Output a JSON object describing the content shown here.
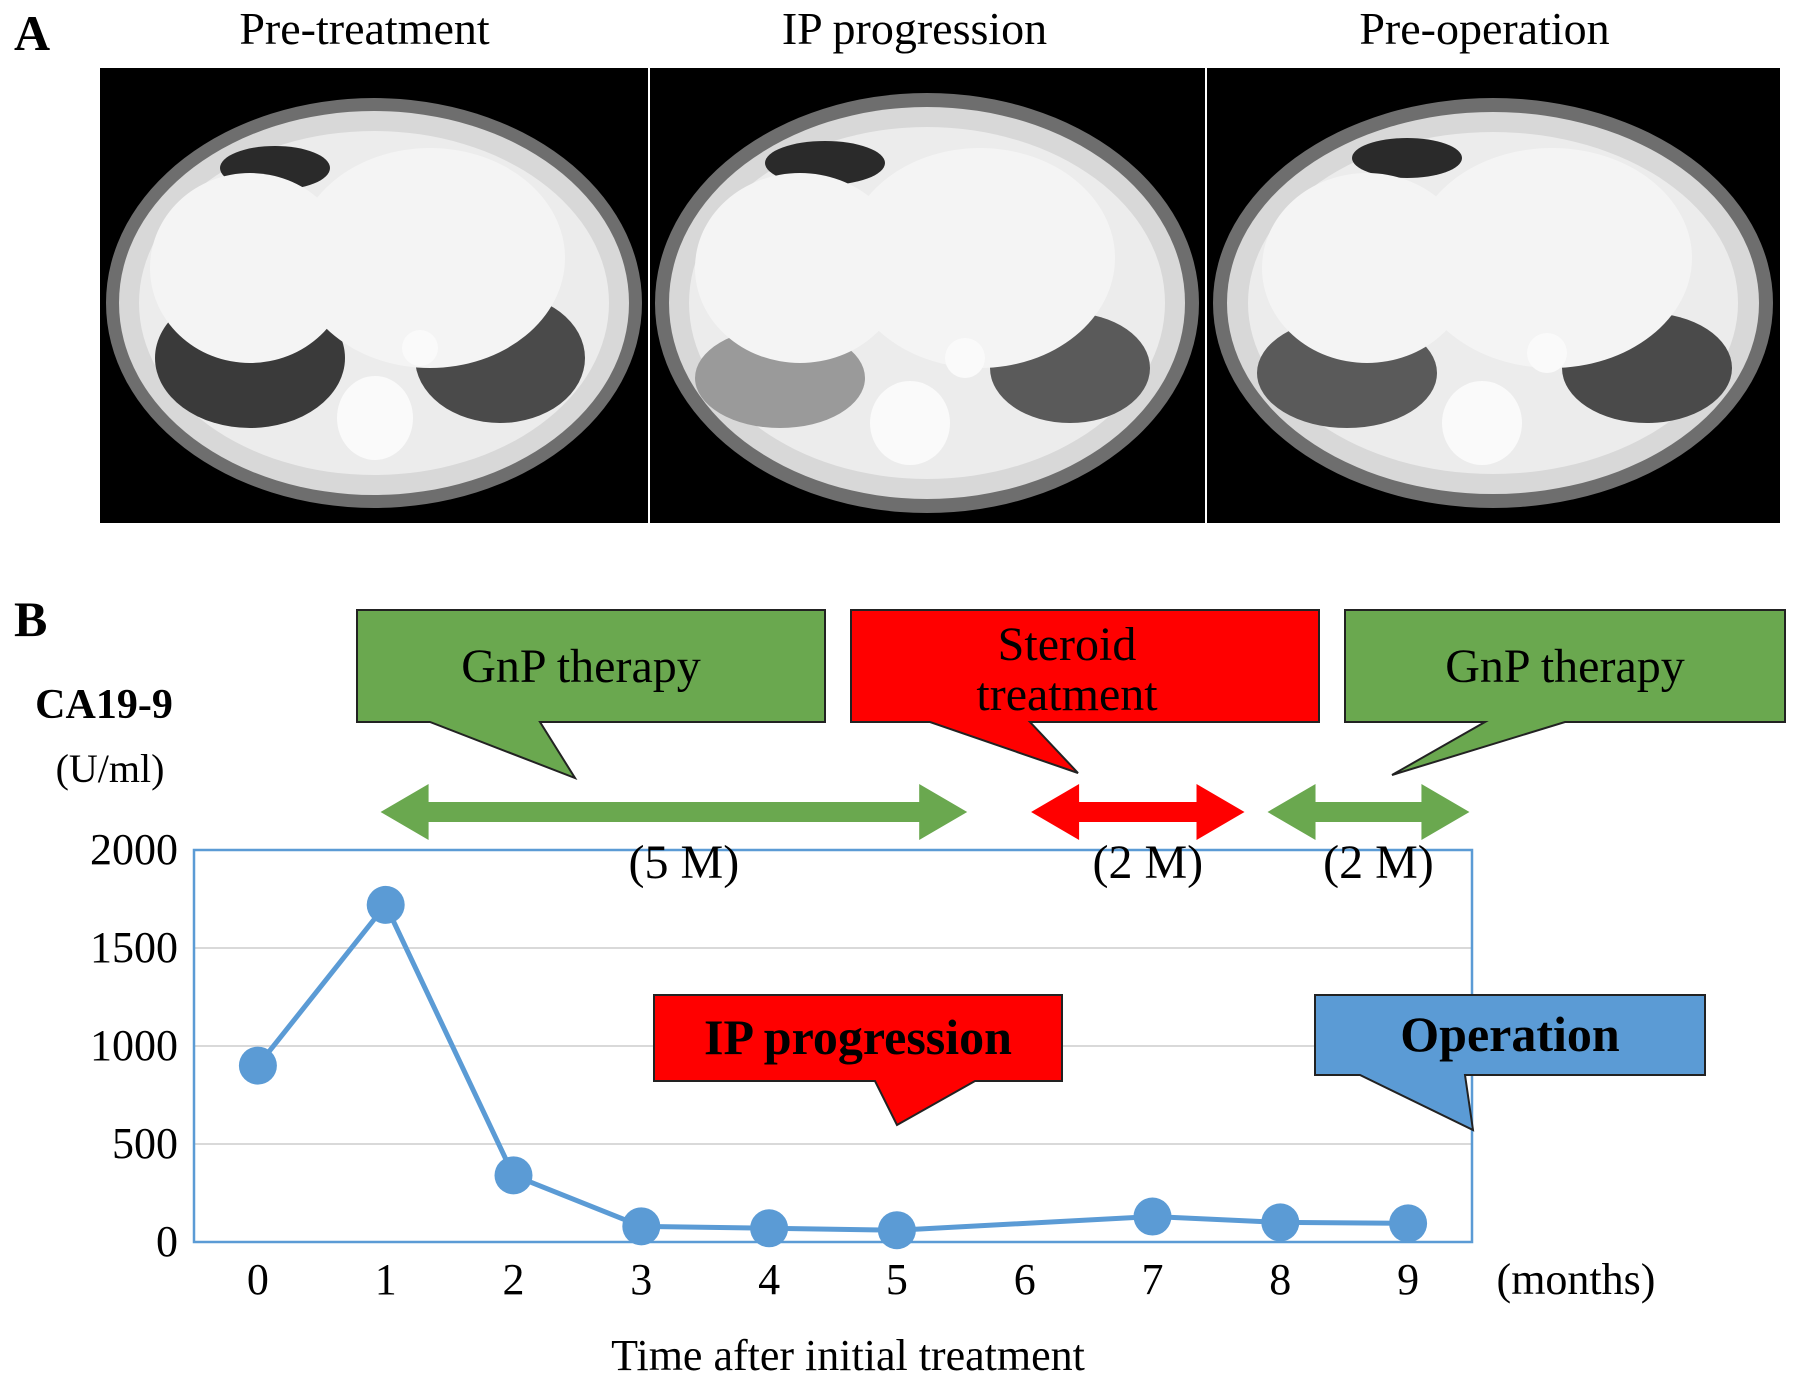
{
  "panel_a": {
    "label": "A",
    "scans": [
      {
        "title": "Pre-treatment"
      },
      {
        "title": "IP progression"
      },
      {
        "title": "Pre-operation"
      }
    ]
  },
  "panel_b": {
    "label": "B"
  },
  "chart_data": {
    "type": "line",
    "ylabel": "CA19-9",
    "ylabel_unit": "(U/ml)",
    "xlabel": "Time after initial treatment",
    "x_unit_label": "(months)",
    "x_ticks": [
      "0",
      "1",
      "2",
      "3",
      "4",
      "5",
      "6",
      "7",
      "8",
      "9"
    ],
    "y_ticks": [
      "0",
      "500",
      "1000",
      "1500",
      "2000"
    ],
    "ylim": [
      0,
      2000
    ],
    "xlim": [
      -0.5,
      9.5
    ],
    "grid": true,
    "series": [
      {
        "x": [
          0,
          1,
          2,
          3,
          4,
          5,
          7,
          8,
          9
        ],
        "y": [
          900,
          1720,
          340,
          80,
          70,
          60,
          130,
          100,
          95
        ],
        "color": "#5b9bd5"
      }
    ],
    "callouts": [
      {
        "text": "GnP therapy",
        "color": "#6aa84f",
        "text_color": "#000000",
        "bold": false
      },
      {
        "text_lines": [
          "Steroid",
          "treatment"
        ],
        "color": "#ff0000",
        "text_color": "#000000",
        "bold": false
      },
      {
        "text": "GnP therapy",
        "color": "#6aa84f",
        "text_color": "#000000",
        "bold": false
      },
      {
        "text": "IP progression",
        "color": "#ff0000",
        "text_color": "#000000",
        "bold": true
      },
      {
        "text": "Operation",
        "color": "#5b9bd5",
        "text_color": "#000000",
        "bold": true
      }
    ],
    "periods": [
      {
        "label": "(5 M)",
        "color": "#6aa84f"
      },
      {
        "label": "(2 M)",
        "color": "#ff0000"
      },
      {
        "label": "(2 M)",
        "color": "#6aa84f"
      }
    ]
  }
}
